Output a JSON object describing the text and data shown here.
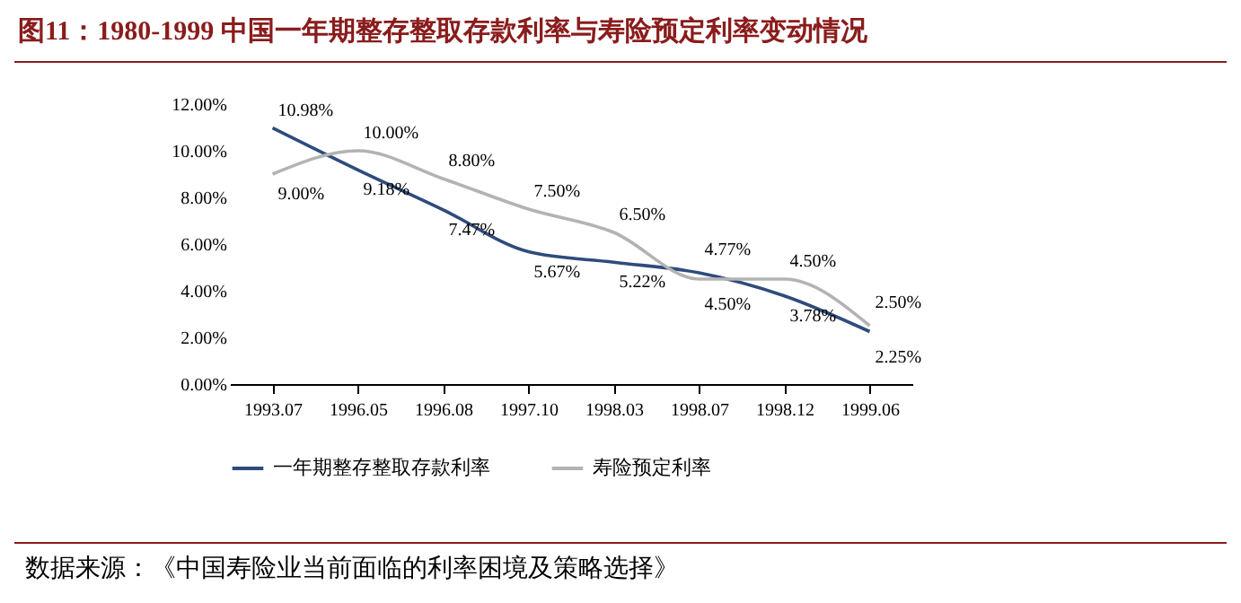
{
  "chart_data": {
    "type": "line",
    "title": "图11：1980-1999 中国一年期整存整取存款利率与寿险预定利率变动情况",
    "categories": [
      "1993.07",
      "1996.05",
      "1996.08",
      "1997.10",
      "1998.03",
      "1998.07",
      "1998.12",
      "1999.06"
    ],
    "series": [
      {
        "name": "一年期整存整取存款利率",
        "color": "#2f4b7c",
        "values": [
          10.98,
          9.18,
          7.47,
          5.67,
          5.22,
          4.77,
          3.78,
          2.25
        ],
        "value_labels": [
          "10.98%",
          "9.18%",
          "7.47%",
          "5.67%",
          "5.22%",
          "4.77%",
          "3.78%",
          "2.25%"
        ]
      },
      {
        "name": "寿险预定利率",
        "color": "#b3b3b3",
        "values": [
          9.0,
          10.0,
          8.8,
          7.5,
          6.5,
          4.5,
          4.5,
          2.5
        ],
        "value_labels": [
          "9.00%",
          "10.00%",
          "8.80%",
          "7.50%",
          "6.50%",
          "4.50%",
          "4.50%",
          "2.50%"
        ]
      }
    ],
    "ylim": [
      0,
      12
    ],
    "yticks": [
      {
        "value": 0,
        "label": "0.00%"
      },
      {
        "value": 2,
        "label": "2.00%"
      },
      {
        "value": 4,
        "label": "4.00%"
      },
      {
        "value": 6,
        "label": "6.00%"
      },
      {
        "value": 8,
        "label": "8.00%"
      },
      {
        "value": 10,
        "label": "10.00%"
      },
      {
        "value": 12,
        "label": "12.00%"
      }
    ],
    "grid": false,
    "legend": "bottom",
    "annotations": [
      "数据来源：《中国寿险业当前面临的利率困境及策略选择》"
    ]
  }
}
